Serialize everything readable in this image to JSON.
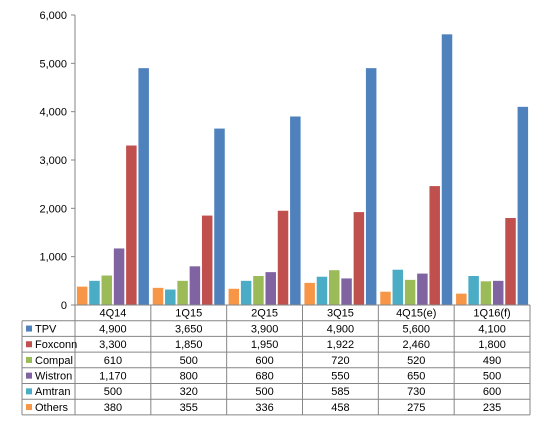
{
  "chart_data": {
    "type": "bar",
    "categories": [
      "4Q14",
      "1Q15",
      "2Q15",
      "3Q15",
      "4Q15(e)",
      "1Q16(f)"
    ],
    "series": [
      {
        "name": "TPV",
        "color": "#4F81BD",
        "values": [
          4900,
          3650,
          3900,
          4900,
          5600,
          4100
        ],
        "labels": [
          "4,900",
          "3,650",
          "3,900",
          "4,900",
          "5,600",
          "4,100"
        ]
      },
      {
        "name": "Foxconn",
        "color": "#C0504D",
        "values": [
          3300,
          1850,
          1950,
          1922,
          2460,
          1800
        ],
        "labels": [
          "3,300",
          "1,850",
          "1,950",
          "1,922",
          "2,460",
          "1,800"
        ]
      },
      {
        "name": "Compal",
        "color": "#9BBB59",
        "values": [
          610,
          500,
          600,
          720,
          520,
          490
        ],
        "labels": [
          "610",
          "500",
          "600",
          "720",
          "520",
          "490"
        ]
      },
      {
        "name": "Wistron",
        "color": "#8064A2",
        "values": [
          1170,
          800,
          680,
          550,
          650,
          500
        ],
        "labels": [
          "1,170",
          "800",
          "680",
          "550",
          "650",
          "500"
        ]
      },
      {
        "name": "Amtran",
        "color": "#4BACC6",
        "values": [
          500,
          320,
          500,
          585,
          730,
          600
        ],
        "labels": [
          "500",
          "320",
          "500",
          "585",
          "730",
          "600"
        ]
      },
      {
        "name": "Others",
        "color": "#F79646",
        "values": [
          380,
          355,
          336,
          458,
          275,
          235
        ],
        "labels": [
          "380",
          "355",
          "336",
          "458",
          "275",
          "235"
        ]
      }
    ],
    "bar_order": [
      "Others",
      "Amtran",
      "Compal",
      "Wistron",
      "Foxconn",
      "TPV"
    ],
    "ylim": [
      0,
      6000
    ],
    "yticks": [
      0,
      1000,
      2000,
      3000,
      4000,
      5000,
      6000
    ],
    "ytick_labels": [
      "0",
      "1,000",
      "2,000",
      "3,000",
      "4,000",
      "5,000",
      "6,000"
    ],
    "grid": false,
    "legend": "data-table-left"
  }
}
